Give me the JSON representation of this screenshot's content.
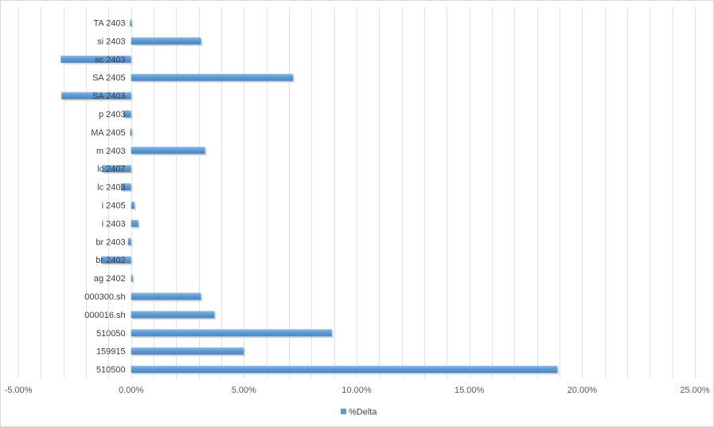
{
  "chart_data": {
    "type": "bar",
    "orientation": "horizontal",
    "categories": [
      "TA 2403",
      "si 2403",
      "sc 2403",
      "SA 2405",
      "SA 2403",
      "p 2403",
      "MA 2405",
      "m 2403",
      "lc 2407",
      "lc 2403",
      "i 2405",
      "i 2403",
      "br 2403",
      "br 2402",
      "ag 2402",
      "000300.sh",
      "000016.sh",
      "510050",
      "159915",
      "510500"
    ],
    "series": [
      {
        "name": "%Delta",
        "color": "#5b9bd5",
        "values": [
          -0.0005,
          0.031,
          -0.0312,
          0.0718,
          -0.0309,
          -0.0033,
          -0.0004,
          0.0328,
          -0.0128,
          -0.0045,
          0.0015,
          0.0032,
          -0.0014,
          -0.0133,
          0.0007,
          0.031,
          0.037,
          0.089,
          0.05,
          0.189
        ]
      }
    ],
    "xlim": [
      -0.05,
      0.25
    ],
    "x_ticks": [
      -0.05,
      0,
      0.05,
      0.1,
      0.15,
      0.2,
      0.25
    ],
    "x_tick_labels": [
      "-5.00%",
      "0.00%",
      "5.00%",
      "10.00%",
      "15.00%",
      "20.00%",
      "25.00%"
    ],
    "grid": "vertical",
    "legend": "bottom",
    "title": "",
    "xlabel": "",
    "ylabel": ""
  }
}
